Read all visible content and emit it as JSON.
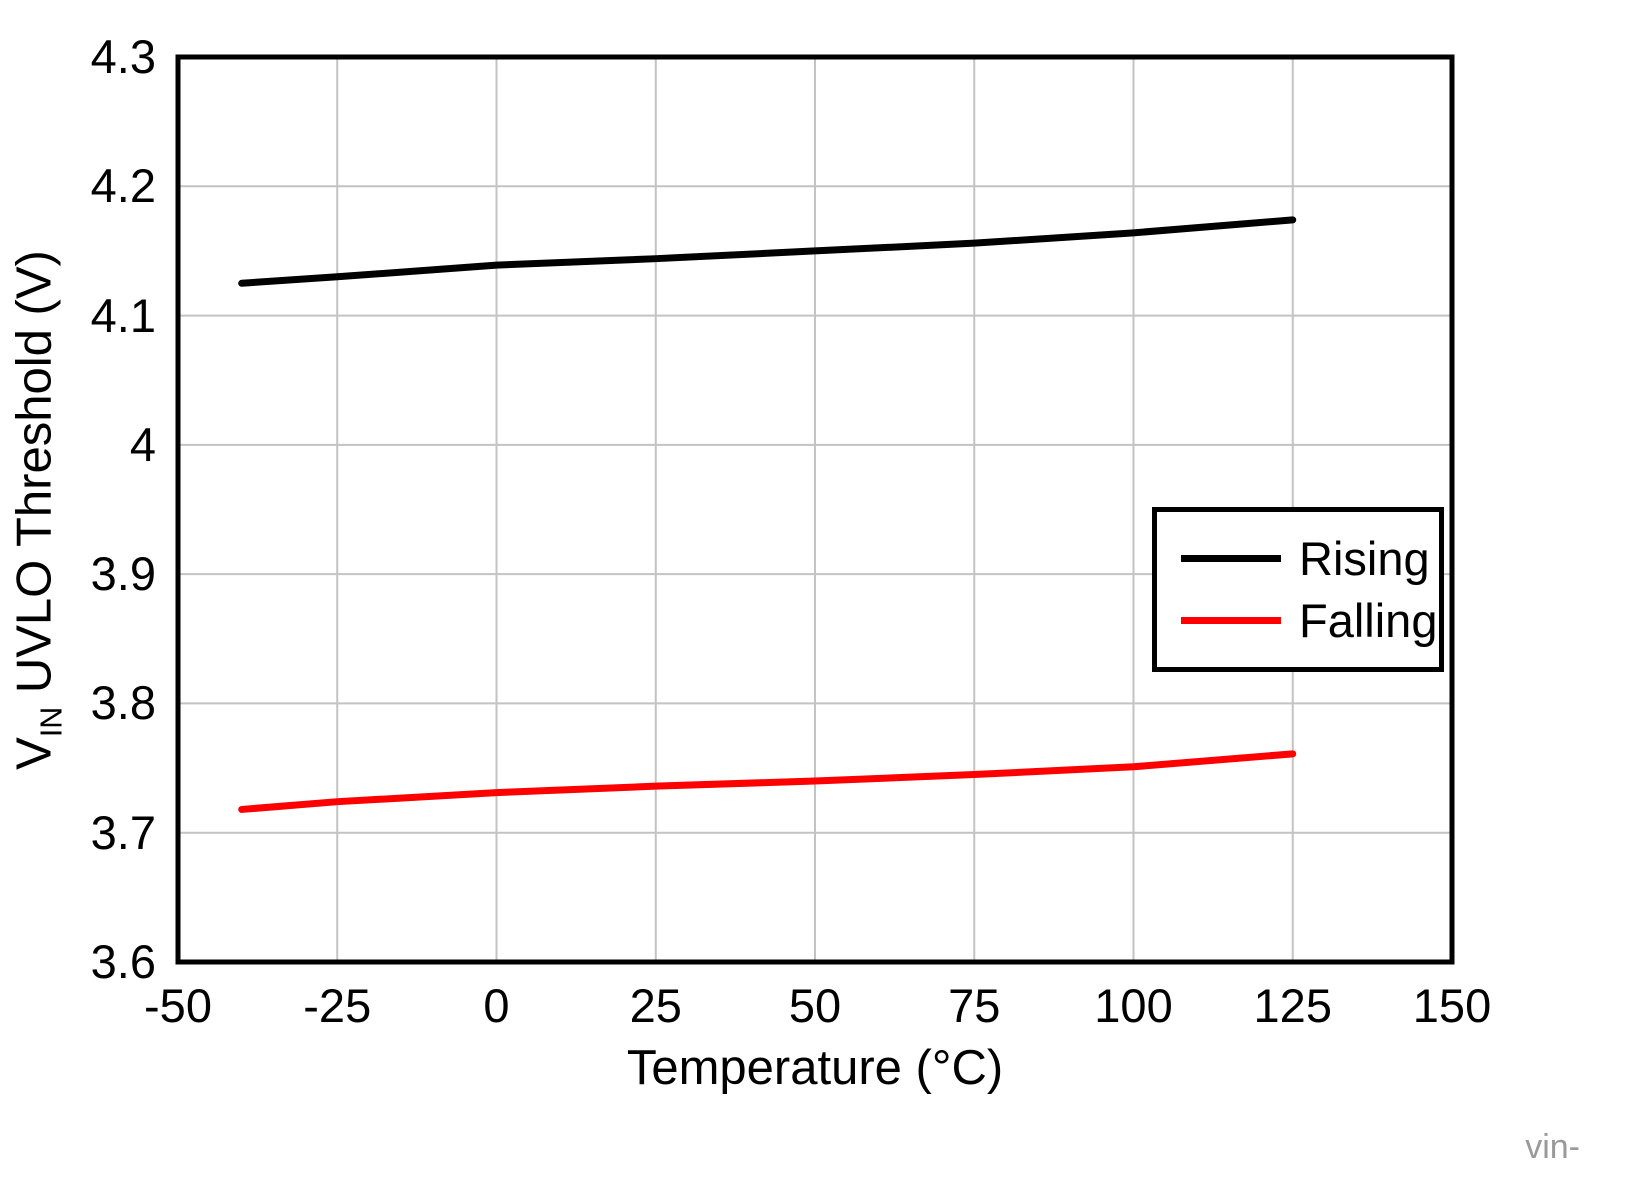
{
  "chart_data": {
    "type": "line",
    "title": "",
    "xlabel": "Temperature (°C)",
    "ylabel": "VIN UVLO Threshold (V)",
    "ylabel_parts": {
      "pre": "V",
      "sub": "IN",
      "post": " UVLO Threshold (V)"
    },
    "xlim": [
      -50,
      150
    ],
    "ylim": [
      3.6,
      4.3
    ],
    "xticks": [
      -50,
      -25,
      0,
      25,
      50,
      75,
      100,
      125,
      150
    ],
    "xticklabels": [
      "-50",
      "-25",
      "0",
      "25",
      "50",
      "75",
      "100",
      "125",
      "150"
    ],
    "yticks": [
      3.6,
      3.7,
      3.8,
      3.9,
      4.0,
      4.1,
      4.2,
      4.3
    ],
    "yticklabels": [
      "3.6",
      "3.7",
      "3.8",
      "3.9",
      "4",
      "4.1",
      "4.2",
      "4.3"
    ],
    "grid": true,
    "legend_position": "middle-right",
    "series": [
      {
        "name": "Rising",
        "color": "#000000",
        "x": [
          -40,
          -25,
          0,
          25,
          50,
          75,
          100,
          125
        ],
        "values": [
          4.125,
          4.13,
          4.139,
          4.144,
          4.15,
          4.156,
          4.164,
          4.174
        ]
      },
      {
        "name": "Falling",
        "color": "#ff0000",
        "x": [
          -40,
          -25,
          0,
          25,
          50,
          75,
          100,
          125
        ],
        "values": [
          3.718,
          3.724,
          3.731,
          3.736,
          3.74,
          3.745,
          3.751,
          3.761
        ]
      }
    ]
  },
  "watermark": "vin-"
}
